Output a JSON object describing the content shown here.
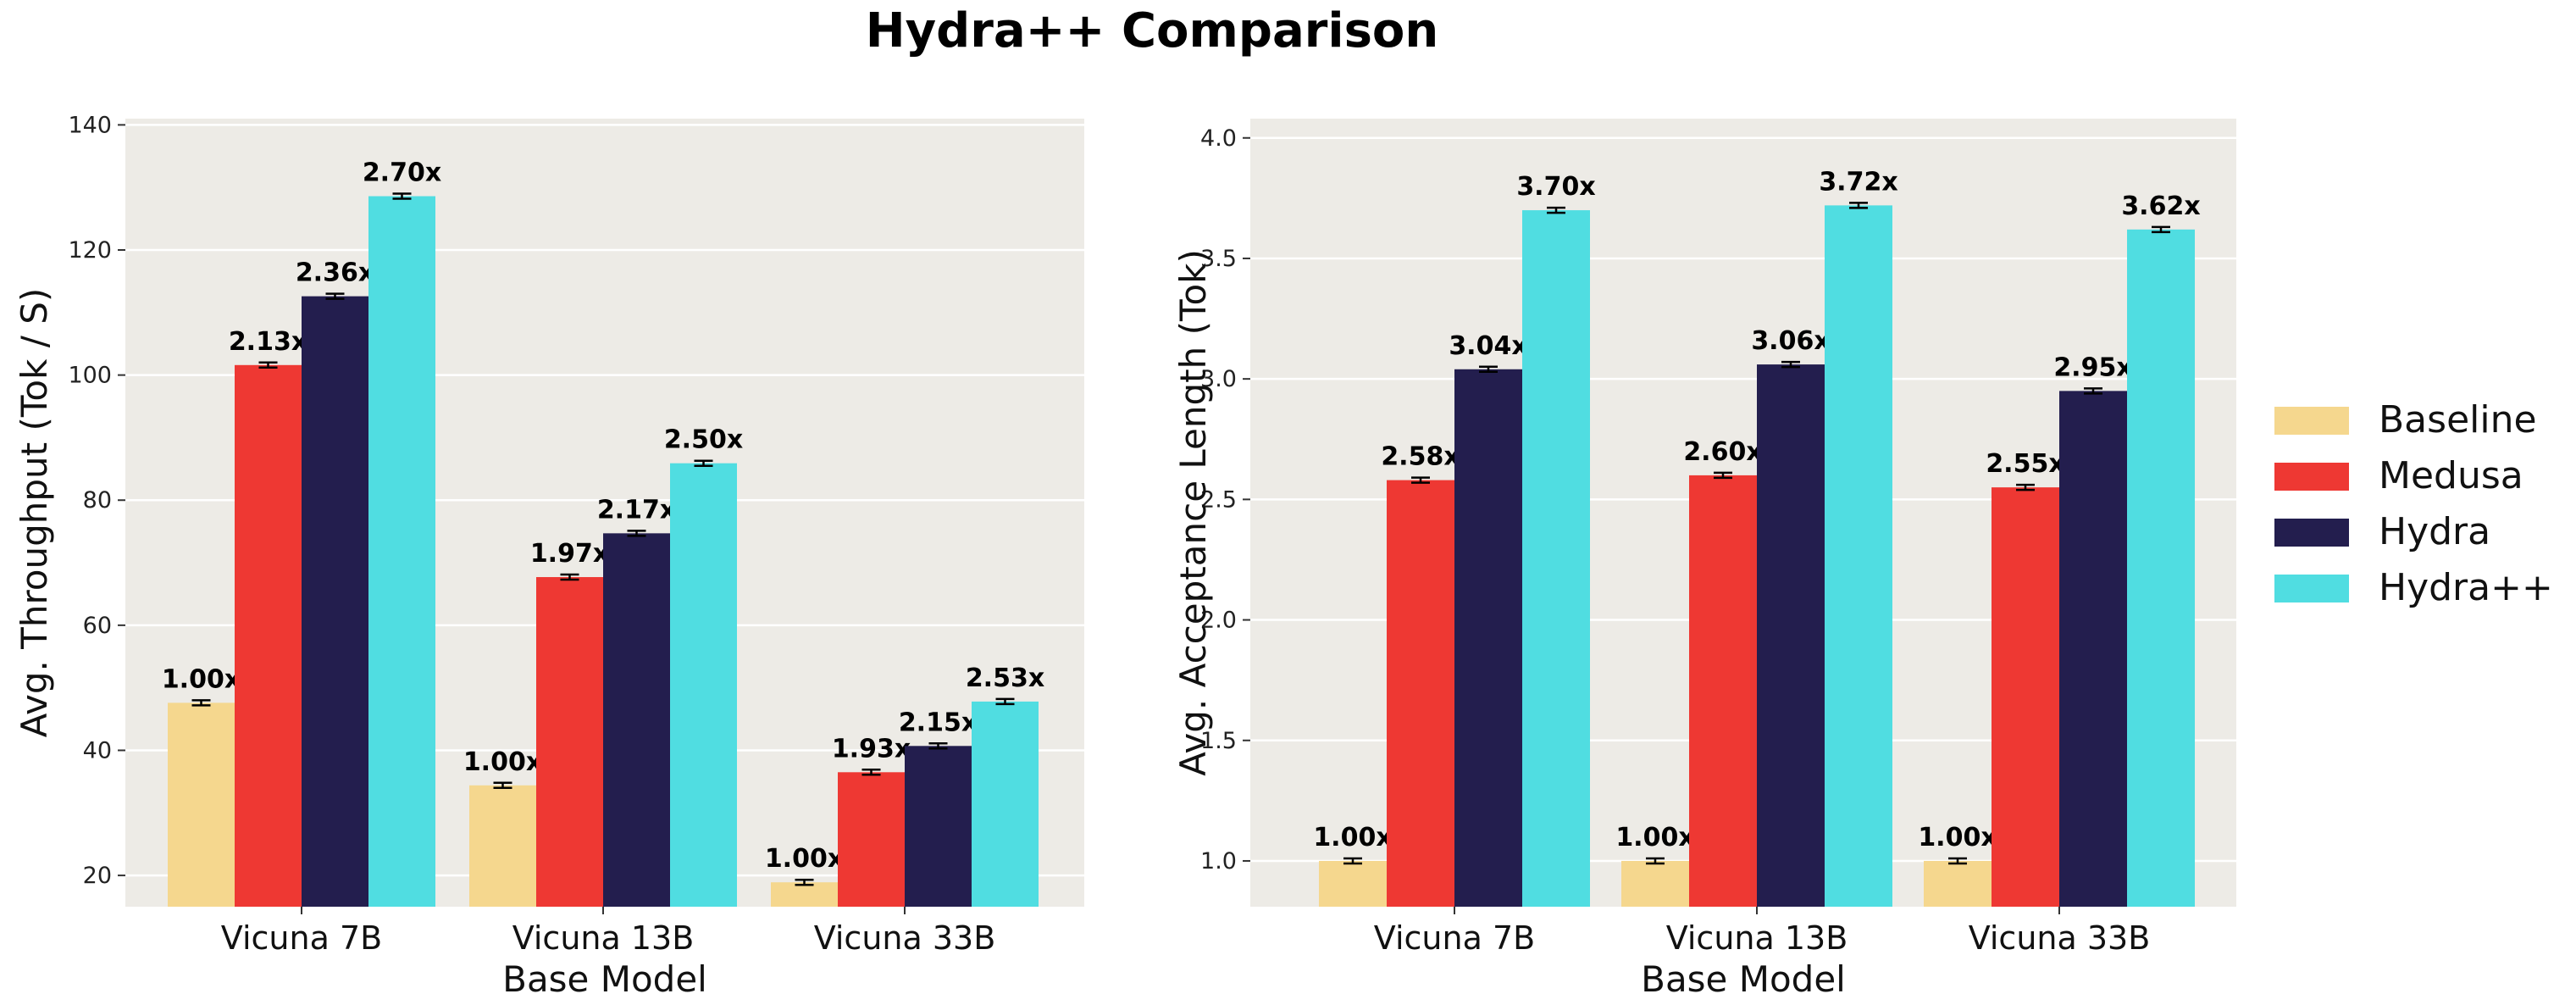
{
  "figure": {
    "title": "Hydra++ Comparison",
    "background": "#ffffff",
    "panel_background": "#edebe6",
    "grid_color": "#ffffff"
  },
  "legend": {
    "placement": "right",
    "entries": [
      {
        "label": "Baseline",
        "color": "#f5d78e"
      },
      {
        "label": "Medusa",
        "color": "#ee3833"
      },
      {
        "label": "Hydra",
        "color": "#231e4e"
      },
      {
        "label": "Hydra++",
        "color": "#50dde1"
      }
    ]
  },
  "chart_data": [
    {
      "type": "bar",
      "title": "",
      "xlabel": "Base Model",
      "ylabel": "Avg. Throughput (Tok / S)",
      "categories": [
        "Vicuna 7B",
        "Vicuna 13B",
        "Vicuna 33B"
      ],
      "ylim": [
        15,
        141
      ],
      "yticks": [
        20,
        40,
        60,
        80,
        100,
        120,
        140
      ],
      "grid": true,
      "error_bars": true,
      "series": [
        {
          "name": "Baseline",
          "values": [
            47.6,
            34.4,
            18.9
          ],
          "labels": [
            "1.00x",
            "1.00x",
            "1.00x"
          ]
        },
        {
          "name": "Medusa",
          "values": [
            101.6,
            67.7,
            36.5
          ],
          "labels": [
            "2.13x",
            "1.97x",
            "1.93x"
          ]
        },
        {
          "name": "Hydra",
          "values": [
            112.6,
            74.7,
            40.7
          ],
          "labels": [
            "2.36x",
            "2.17x",
            "2.15x"
          ]
        },
        {
          "name": "Hydra++",
          "values": [
            128.6,
            85.9,
            47.8
          ],
          "labels": [
            "2.70x",
            "2.50x",
            "2.53x"
          ]
        }
      ]
    },
    {
      "type": "bar",
      "title": "",
      "xlabel": "Base Model",
      "ylabel": "Avg. Acceptance Length (Tok)",
      "categories": [
        "Vicuna 7B",
        "Vicuna 13B",
        "Vicuna 33B"
      ],
      "ylim": [
        0.81,
        4.08
      ],
      "yticks": [
        1.0,
        1.5,
        2.0,
        2.5,
        3.0,
        3.5,
        4.0
      ],
      "grid": true,
      "error_bars": true,
      "series": [
        {
          "name": "Baseline",
          "values": [
            1.0,
            1.0,
            1.0
          ],
          "labels": [
            "1.00x",
            "1.00x",
            "1.00x"
          ]
        },
        {
          "name": "Medusa",
          "values": [
            2.58,
            2.6,
            2.55
          ],
          "labels": [
            "2.58x",
            "2.60x",
            "2.55x"
          ]
        },
        {
          "name": "Hydra",
          "values": [
            3.04,
            3.06,
            2.95
          ],
          "labels": [
            "3.04x",
            "3.06x",
            "2.95x"
          ]
        },
        {
          "name": "Hydra++",
          "values": [
            3.7,
            3.72,
            3.62
          ],
          "labels": [
            "3.70x",
            "3.72x",
            "3.62x"
          ]
        }
      ]
    }
  ]
}
